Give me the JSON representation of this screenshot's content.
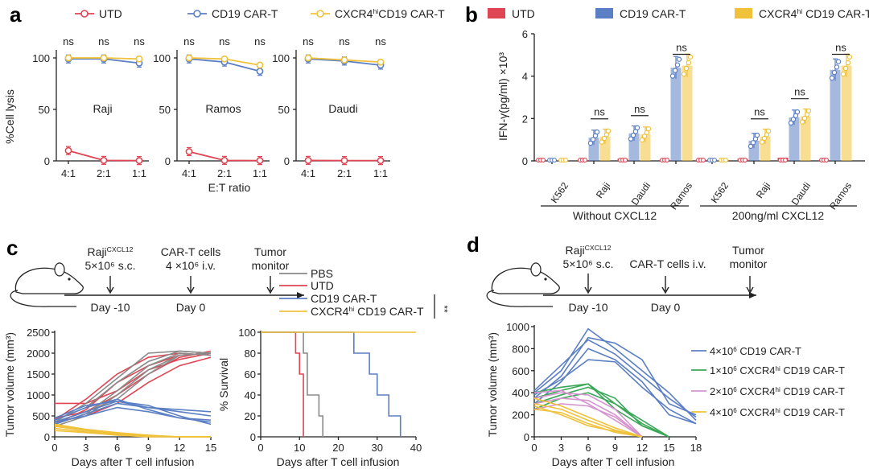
{
  "colors": {
    "utd": "#e04553",
    "cd19": "#5b7fc4",
    "cxcr4": "#f0c23b",
    "pbs": "#8a8a8a",
    "green": "#3aa858",
    "pink": "#d694cf"
  },
  "panels": {
    "a": "a",
    "b": "b",
    "c": "c",
    "d": "d"
  },
  "chart_data": [
    {
      "id": "a",
      "type": "line",
      "legend": [
        "UTD",
        "CD19 CAR-T",
        "CXCR4hiCD19 CAR-T"
      ],
      "ylabel": "%Cell lysis",
      "xlabel": "E:T ratio",
      "categories": [
        "4:1",
        "2:1",
        "1:1"
      ],
      "ylim": [
        0,
        100
      ],
      "yticks": [
        0,
        50,
        100
      ],
      "sig": "ns",
      "subplots": [
        {
          "name": "Raji",
          "series": [
            {
              "name": "UTD",
              "values": [
                10,
                0.5,
                0.3
              ]
            },
            {
              "name": "CD19 CAR-T",
              "values": [
                99,
                99,
                95
              ]
            },
            {
              "name": "CXCR4hi CD19 CAR-T",
              "values": [
                100,
                100,
                99
              ]
            }
          ]
        },
        {
          "name": "Ramos",
          "series": [
            {
              "name": "UTD",
              "values": [
                9,
                0.5,
                0.3
              ]
            },
            {
              "name": "CD19 CAR-T",
              "values": [
                99,
                96,
                87
              ]
            },
            {
              "name": "CXCR4hi CD19 CAR-T",
              "values": [
                100,
                99,
                93
              ]
            }
          ]
        },
        {
          "name": "Daudi",
          "series": [
            {
              "name": "UTD",
              "values": [
                0.5,
                0.3,
                0.3
              ]
            },
            {
              "name": "CD19 CAR-T",
              "values": [
                99,
                97,
                93
              ]
            },
            {
              "name": "CXCR4hi CD19 CAR-T",
              "values": [
                100,
                98,
                96
              ]
            }
          ]
        }
      ]
    },
    {
      "id": "b",
      "type": "bar",
      "legend": [
        "UTD",
        "CD19 CAR-T",
        "CXCR4hi CD19 CAR-T"
      ],
      "ylabel": "IFN-γ(pg/ml) ×10³",
      "ylim": [
        0,
        6
      ],
      "yticks": [
        0,
        2,
        4,
        6
      ],
      "categories": [
        "K562",
        "Raji",
        "Daudi",
        "Ramos",
        "K562",
        "Raji",
        "Daudi",
        "Ramos"
      ],
      "groups": [
        "Without CXCL12",
        "200ng/ml CXCL12"
      ],
      "sig": "ns",
      "series": [
        {
          "name": "UTD",
          "values": [
            0.05,
            0.05,
            0.1,
            0.05,
            0.05,
            0.1,
            0.15,
            0.05
          ]
        },
        {
          "name": "CD19 CAR-T",
          "values": [
            0.05,
            1.1,
            1.3,
            4.4,
            0.05,
            0.95,
            2.05,
            4.3
          ]
        },
        {
          "name": "CXCR4hi CD19 CAR-T",
          "values": [
            0.05,
            1.15,
            1.25,
            4.5,
            0.05,
            1.15,
            2.1,
            4.5
          ]
        }
      ]
    },
    {
      "id": "c",
      "type": "line",
      "timeline": {
        "events": [
          "Raji",
          "CAR-T cells",
          "Tumor"
        ],
        "sup": "CXCL12",
        "lines": [
          "5×10⁶ s.c.",
          "4 ×10⁶ i.v.",
          "monitor"
        ],
        "days": [
          "Day -10",
          "Day 0"
        ]
      },
      "legend": [
        "PBS",
        "UTD",
        "CD19 CAR-T",
        "CXCR4",
        "hi",
        " CD19 CAR-T"
      ],
      "sig": "**",
      "subplots": [
        {
          "name": "volume",
          "ylabel": "Tumor volume (mm³)",
          "xlabel": "Days after T cell infusion",
          "xlim": [
            0,
            15
          ],
          "ylim": [
            0,
            2500
          ],
          "xticks": [
            0,
            3,
            6,
            9,
            12,
            15
          ],
          "yticks": [
            0,
            500,
            1000,
            1500,
            2000,
            2500
          ],
          "series": [
            {
              "name": "UTD",
              "x": [
                0,
                3,
                6,
                9,
                12,
                15
              ],
              "y": [
                [
                  300,
                  650,
                  1300,
                  1700,
                  1950,
                  2000
                ],
                [
                  400,
                  900,
                  1500,
                  1900,
                  2000,
                  1950
                ],
                [
                  800,
                  800,
                  1100,
                  1600,
                  1850,
                  2000
                ],
                [
                  350,
                  500,
                  800,
                  1300,
                  1700,
                  1900
                ],
                [
                  450,
                  600,
                  1000,
                  1500,
                  1900,
                  2050
                ]
              ]
            },
            {
              "name": "PBS",
              "x": [
                0,
                3,
                6,
                9,
                12,
                15
              ],
              "y": [
                [
                  350,
                  600,
                  900,
                  1500,
                  1950,
                  2000
                ],
                [
                  300,
                  550,
                  1100,
                  1700,
                  2000,
                  1950
                ],
                [
                  400,
                  700,
                  1300,
                  1800,
                  2050,
                  2000
                ],
                [
                  250,
                  500,
                  1000,
                  1600,
                  1950,
                  2000
                ],
                [
                  350,
                  800,
                  1400,
                  2000,
                  2050,
                  2000
                ]
              ]
            },
            {
              "name": "CD19 CAR-T",
              "x": [
                0,
                3,
                6,
                9,
                12,
                15
              ],
              "y": [
                [
                  350,
                  600,
                  850,
                  750,
                  500,
                  300
                ],
                [
                  400,
                  700,
                  900,
                  650,
                  450,
                  350
                ],
                [
                  300,
                  550,
                  800,
                  700,
                  600,
                  500
                ],
                [
                  450,
                  750,
                  850,
                  700,
                  650,
                  600
                ],
                [
                  350,
                  500,
                  700,
                  600,
                  450,
                  400
                ]
              ]
            },
            {
              "name": "CXCR4hi CD19 CAR-T",
              "x": [
                0,
                3,
                6,
                9,
                12,
                15
              ],
              "y": [
                [
                  250,
                  150,
                  80,
                  20,
                  0,
                  0
                ],
                [
                  200,
                  120,
                  60,
                  10,
                  0,
                  0
                ],
                [
                  150,
                  100,
                  40,
                  0,
                  0,
                  0
                ],
                [
                  300,
                  180,
                  100,
                  40,
                  0,
                  0
                ],
                [
                  280,
                  160,
                  90,
                  30,
                  0,
                  0
                ]
              ]
            }
          ]
        },
        {
          "name": "survival",
          "ylabel": "% Survival",
          "xlabel": "Days after T cell infusion",
          "xlim": [
            0,
            40
          ],
          "ylim": [
            0,
            100
          ],
          "xticks": [
            0,
            10,
            20,
            30,
            40
          ],
          "yticks": [
            0,
            20,
            40,
            60,
            80,
            100
          ],
          "series": [
            {
              "name": "PBS",
              "steps": [
                [
                  0,
                  100
                ],
                [
                  11,
                  100
                ],
                [
                  11,
                  80
                ],
                [
                  12,
                  80
                ],
                [
                  12,
                  40
                ],
                [
                  15,
                  40
                ],
                [
                  15,
                  20
                ],
                [
                  16,
                  20
                ],
                [
                  16,
                  0
                ]
              ]
            },
            {
              "name": "UTD",
              "steps": [
                [
                  0,
                  100
                ],
                [
                  9,
                  100
                ],
                [
                  9,
                  80
                ],
                [
                  10,
                  80
                ],
                [
                  10,
                  60
                ],
                [
                  11,
                  60
                ],
                [
                  11,
                  0
                ]
              ]
            },
            {
              "name": "CD19 CAR-T",
              "steps": [
                [
                  0,
                  100
                ],
                [
                  24,
                  100
                ],
                [
                  24,
                  80
                ],
                [
                  28,
                  80
                ],
                [
                  28,
                  60
                ],
                [
                  30,
                  60
                ],
                [
                  30,
                  40
                ],
                [
                  33,
                  40
                ],
                [
                  33,
                  20
                ],
                [
                  36,
                  20
                ],
                [
                  36,
                  0
                ]
              ]
            },
            {
              "name": "CXCR4hi CD19 CAR-T",
              "steps": [
                [
                  0,
                  100
                ],
                [
                  40,
                  100
                ]
              ]
            }
          ]
        }
      ]
    },
    {
      "id": "d",
      "type": "line",
      "timeline": {
        "events": [
          "Raji",
          "CAR-T cells i.v.",
          "Tumor"
        ],
        "sup": "CXCL12",
        "lines": [
          "5×10⁶ s.c.",
          "monitor"
        ],
        "days": [
          "Day -10",
          "Day 0"
        ]
      },
      "ylabel": "Tumor volume (mm³)",
      "xlabel": "Days after T cell infusion",
      "xlim": [
        0,
        18
      ],
      "ylim": [
        0,
        1000
      ],
      "xticks": [
        0,
        3,
        6,
        9,
        12,
        15,
        18
      ],
      "yticks": [
        0,
        200,
        400,
        600,
        800,
        1000
      ],
      "legend": [
        "4×10",
        "6",
        " CD19 CAR-T",
        "1×10",
        "6",
        " CXCR4",
        "hi",
        " CD19 CAR-T",
        "2×10",
        "6",
        " CXCR4",
        "hi",
        " CD19 CAR-T",
        "4×10",
        "6",
        " CXCR4",
        "hi",
        " CD19 CAR-T"
      ],
      "series": [
        {
          "name": "4×10⁶ CD19 CAR-T",
          "x": [
            0,
            3,
            6,
            9,
            12,
            15,
            18
          ],
          "y": [
            [
              400,
              600,
              980,
              800,
              600,
              400,
              150
            ],
            [
              350,
              550,
              900,
              850,
              700,
              300,
              200
            ],
            [
              300,
              500,
              800,
              700,
              500,
              200,
              120
            ],
            [
              420,
              650,
              880,
              750,
              550,
              350,
              180
            ],
            [
              380,
              520,
              700,
              680,
              450,
              250,
              120
            ]
          ]
        },
        {
          "name": "1×10⁶ CXCR4hi CD19 CAR-T",
          "x": [
            0,
            3,
            6,
            9,
            12,
            15
          ],
          "y": [
            [
              400,
              450,
              480,
              250,
              100,
              0
            ],
            [
              350,
              420,
              480,
              300,
              150,
              0
            ],
            [
              300,
              380,
              450,
              350,
              100,
              0
            ],
            [
              250,
              350,
              400,
              300,
              120,
              0
            ]
          ]
        },
        {
          "name": "2×10⁶ CXCR4hi CD19 CAR-T",
          "x": [
            0,
            3,
            6,
            9,
            12
          ],
          "y": [
            [
              350,
              400,
              380,
              250,
              0
            ],
            [
              300,
              350,
              330,
              200,
              0
            ],
            [
              400,
              420,
              300,
              150,
              0
            ],
            [
              250,
              300,
              280,
              180,
              0
            ]
          ]
        },
        {
          "name": "4×10⁶ CXCR4hi CD19 CAR-T",
          "x": [
            0,
            3,
            6,
            9,
            12
          ],
          "y": [
            [
              300,
              250,
              150,
              60,
              0
            ],
            [
              350,
              280,
              180,
              80,
              0
            ],
            [
              250,
              220,
              120,
              40,
              0
            ],
            [
              280,
              200,
              100,
              50,
              0
            ]
          ]
        }
      ]
    }
  ]
}
